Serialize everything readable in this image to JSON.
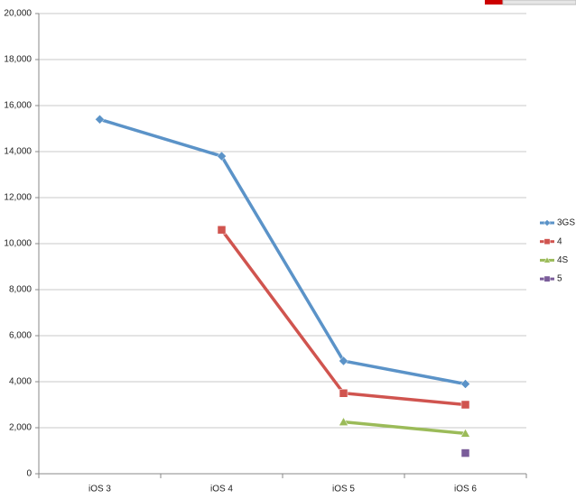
{
  "chart_data": {
    "type": "line",
    "categories": [
      "iOS 3",
      "iOS 4",
      "iOS 5",
      "iOS 6"
    ],
    "series": [
      {
        "name": "3GS",
        "color": "#5b93c8",
        "marker": "diamond",
        "values": [
          15400,
          13800,
          4900,
          3900
        ]
      },
      {
        "name": "4",
        "color": "#d0544f",
        "marker": "square",
        "values": [
          null,
          10600,
          3500,
          3000
        ]
      },
      {
        "name": "4S",
        "color": "#9bbb59",
        "marker": "triangle",
        "values": [
          null,
          null,
          2250,
          1750
        ]
      },
      {
        "name": "5",
        "color": "#7a5c9a",
        "marker": "square",
        "values": [
          null,
          null,
          null,
          900
        ]
      }
    ],
    "ylim": [
      0,
      20000
    ],
    "yticks": [
      0,
      {
        "value": 2000,
        "label": "2,000"
      },
      {
        "value": 4000,
        "label": "4,000"
      },
      {
        "value": 6000,
        "label": "6,000"
      },
      {
        "value": 8000,
        "label": "8,000"
      },
      {
        "value": 10000,
        "label": "10,000"
      },
      {
        "value": 12000,
        "label": "12,000"
      },
      {
        "value": 14000,
        "label": "14,000"
      },
      {
        "value": 16000,
        "label": "16,000"
      },
      {
        "value": 18000,
        "label": "18,000"
      },
      {
        "value": 20000,
        "label": "20,000"
      }
    ],
    "grid": true,
    "legend": "right"
  }
}
